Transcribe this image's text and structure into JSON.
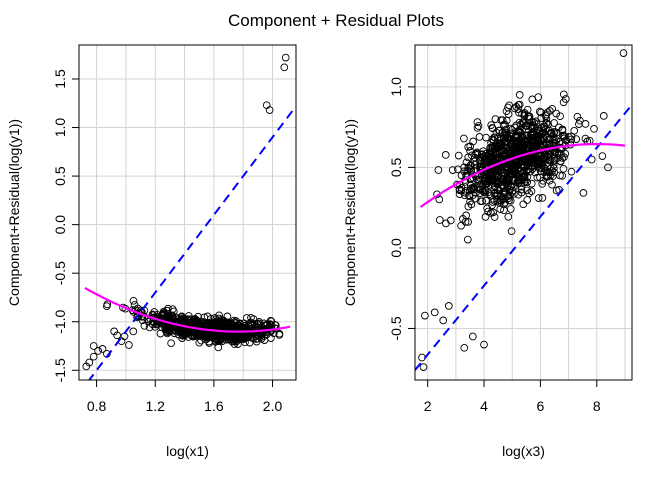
{
  "title": "Component + Residual Plots",
  "chart_data": [
    {
      "type": "scatter",
      "xlabel": "log(x1)",
      "ylabel": "Component+Residual(log(y1))",
      "xlim": [
        0.68,
        2.16
      ],
      "ylim": [
        -1.6,
        1.85
      ],
      "xticks": [
        "0.8",
        "1.2",
        "1.6",
        "2.0"
      ],
      "xtick_values": [
        0.8,
        1.2,
        1.6,
        2.0
      ],
      "extra_xtick_values": [
        1.0,
        1.4,
        1.8
      ],
      "yticks": [
        "-1.5",
        "-1.0",
        "-0.5",
        "0.0",
        "0.5",
        "1.0",
        "1.5"
      ],
      "ytick_values": [
        -1.5,
        -1.0,
        -0.5,
        0.0,
        0.5,
        1.0,
        1.5
      ],
      "grid": true,
      "points_visible": [
        [
          0.73,
          -1.46
        ],
        [
          0.75,
          -1.42
        ],
        [
          0.78,
          -1.36
        ],
        [
          0.81,
          -1.3
        ],
        [
          0.78,
          -1.25
        ],
        [
          0.87,
          -1.33
        ],
        [
          0.84,
          -1.28
        ],
        [
          0.92,
          -1.1
        ],
        [
          0.94,
          -1.14
        ],
        [
          0.97,
          -1.2
        ],
        [
          0.99,
          -1.15
        ],
        [
          1.02,
          -1.24
        ],
        [
          1.05,
          -1.1
        ],
        [
          2.08,
          1.62
        ],
        [
          2.09,
          1.72
        ],
        [
          1.96,
          1.23
        ],
        [
          1.98,
          1.18
        ]
      ],
      "point_cloud": {
        "n": 900,
        "x_mean": 1.56,
        "x_sd": 0.21,
        "x_range": [
          0.85,
          2.05
        ],
        "curve": [
          0.18,
          -1.45,
          0.41
        ],
        "residual_sd": 0.055
      },
      "linear_fit": {
        "slope": 2.0,
        "intercept": -3.1,
        "color": "#0000ff",
        "style": "dashed"
      },
      "smooth_fit": {
        "type": "quadratic",
        "coefficients": [
          0.18,
          -1.45,
          0.41
        ],
        "x_range": [
          0.72,
          2.12
        ],
        "color": "#ff00ff"
      },
      "point_color": "#000000"
    },
    {
      "type": "scatter",
      "xlabel": "log(x3)",
      "ylabel": "Component+Residual(log(y1))",
      "xlim": [
        1.55,
        9.25
      ],
      "ylim": [
        -0.82,
        1.26
      ],
      "xticks": [
        "2",
        "4",
        "6",
        "8"
      ],
      "xtick_values": [
        2,
        4,
        6,
        8
      ],
      "extra_xtick_values": [
        3,
        5,
        7,
        9
      ],
      "yticks": [
        "-0.5",
        "0.0",
        "0.5",
        "1.0"
      ],
      "ytick_values": [
        -0.5,
        0.0,
        0.5,
        1.0
      ],
      "grid": true,
      "points_visible": [
        [
          8.95,
          1.21
        ],
        [
          1.8,
          -0.68
        ],
        [
          1.85,
          -0.74
        ],
        [
          1.9,
          -0.42
        ],
        [
          2.25,
          -0.4
        ],
        [
          2.55,
          -0.45
        ],
        [
          2.75,
          -0.36
        ],
        [
          3.3,
          -0.62
        ],
        [
          3.25,
          0.18
        ],
        [
          3.55,
          0.27
        ],
        [
          5.9,
          0.73
        ],
        [
          6.55,
          0.67
        ],
        [
          7.0,
          0.69
        ],
        [
          7.4,
          0.79
        ],
        [
          7.6,
          0.77
        ],
        [
          7.9,
          0.74
        ],
        [
          8.2,
          0.57
        ],
        [
          8.25,
          0.82
        ],
        [
          8.4,
          0.5
        ],
        [
          4.2,
          0.42
        ],
        [
          4.6,
          0.32
        ],
        [
          5.3,
          0.55
        ],
        [
          3.6,
          -0.55
        ],
        [
          4.0,
          -0.6
        ]
      ],
      "point_cloud": {
        "n": 900,
        "x_mean": 5.05,
        "x_sd": 0.95,
        "x_range": [
          2.3,
          8.1
        ],
        "curve": [
          0.005,
          0.16,
          -0.01
        ],
        "residual_sd": 0.13
      },
      "linear_fit": {
        "slope": 0.214,
        "intercept": -1.09,
        "color": "#0000ff",
        "style": "dashed"
      },
      "smooth_fit": {
        "type": "quadratic",
        "coefficients": [
          0.005,
          0.16,
          -0.01
        ],
        "x_range": [
          1.75,
          9.0
        ],
        "color": "#ff00ff"
      },
      "point_color": "#000000"
    }
  ]
}
